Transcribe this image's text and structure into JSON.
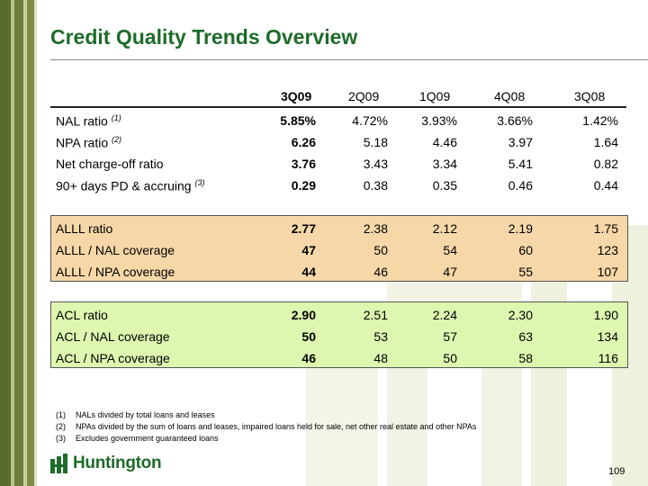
{
  "title": "Credit Quality Trends Overview",
  "columns": [
    "3Q09",
    "2Q09",
    "1Q09",
    "4Q08",
    "3Q08"
  ],
  "rows": [
    {
      "label": "NAL ratio",
      "note": "(1)",
      "values": [
        "5.85%",
        "4.72%",
        "3.93%",
        "3.66%",
        "1.42%"
      ]
    },
    {
      "label": "NPA ratio",
      "note": "(2)",
      "values": [
        "6.26",
        "5.18",
        "4.46",
        "3.97",
        "1.64"
      ]
    },
    {
      "label": "Net charge-off ratio",
      "note": "",
      "values": [
        "3.76",
        "3.43",
        "3.34",
        "5.41",
        "0.82"
      ]
    },
    {
      "label": "90+ days PD & accruing",
      "note": "(3)",
      "values": [
        "0.29",
        "0.38",
        "0.35",
        "0.46",
        "0.44"
      ]
    },
    {
      "label": "ALLL ratio",
      "note": "",
      "values": [
        "2.77",
        "2.38",
        "2.12",
        "2.19",
        "1.75"
      ]
    },
    {
      "label": "ALLL / NAL coverage",
      "note": "",
      "values": [
        "47",
        "50",
        "54",
        "60",
        "123"
      ]
    },
    {
      "label": "ALLL / NPA coverage",
      "note": "",
      "values": [
        "44",
        "46",
        "47",
        "55",
        "107"
      ]
    },
    {
      "label": "ACL ratio",
      "note": "",
      "values": [
        "2.90",
        "2.51",
        "2.24",
        "2.30",
        "1.90"
      ]
    },
    {
      "label": "ACL / NAL coverage",
      "note": "",
      "values": [
        "50",
        "53",
        "57",
        "63",
        "134"
      ]
    },
    {
      "label": "ACL / NPA coverage",
      "note": "",
      "values": [
        "46",
        "48",
        "50",
        "58",
        "116"
      ]
    }
  ],
  "footnotes": [
    {
      "num": "(1)",
      "text": "NALs divided by total loans and leases"
    },
    {
      "num": "(2)",
      "text": "NPAs divided by the sum of loans and leases, impaired loans held for sale, net other real estate and other NPAs"
    },
    {
      "num": "(3)",
      "text": "Excludes government guaranteed loans"
    }
  ],
  "logo_text": "Huntington",
  "page_number": "109",
  "colors": {
    "title": "#1e6b2a",
    "alll_box": "#f6d7a8",
    "acl_box": "#ddf7b0",
    "left_bar": "#6f7d3a"
  }
}
